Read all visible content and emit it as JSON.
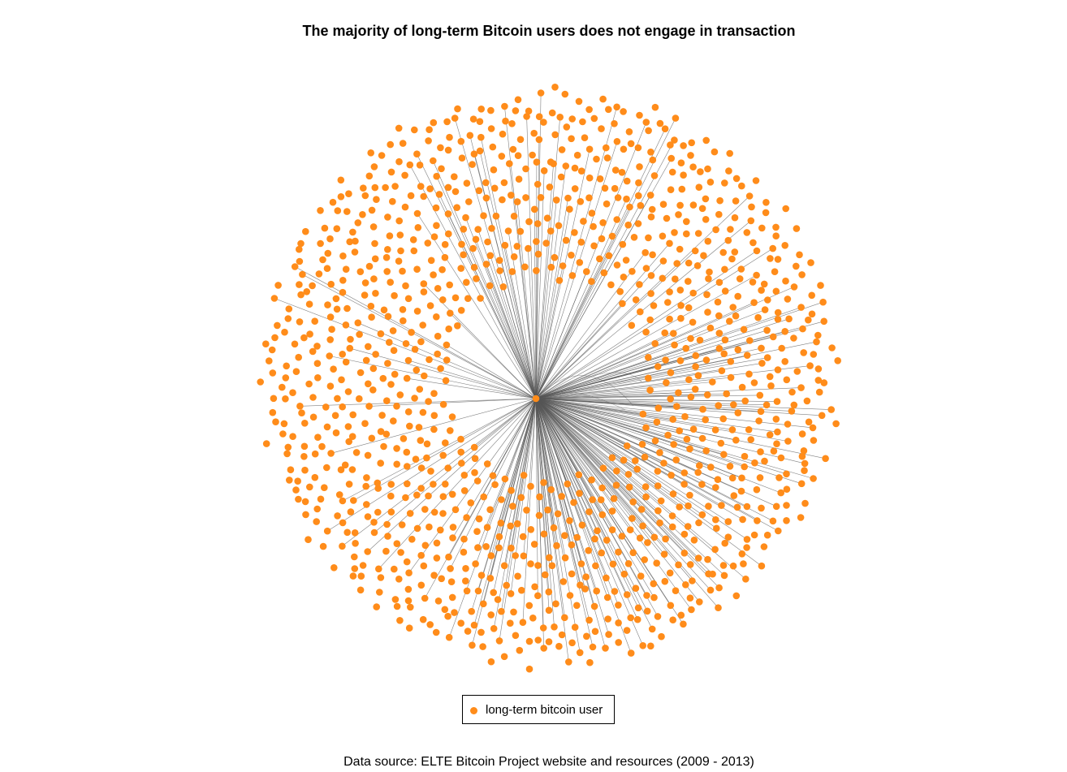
{
  "title": "The majority of long-term Bitcoin users does not engage in transaction",
  "legend": {
    "label": "long-term bitcoin user"
  },
  "source": "Data source: ELTE Bitcoin Project website and resources (2009 - 2013)",
  "graph": {
    "layout": "circular-spiral",
    "node_color": "#ff8c1a",
    "edge_color": "#555555",
    "hub_node": "center",
    "description": "Star graph: one central user connected to many others; most nodes isolated"
  }
}
